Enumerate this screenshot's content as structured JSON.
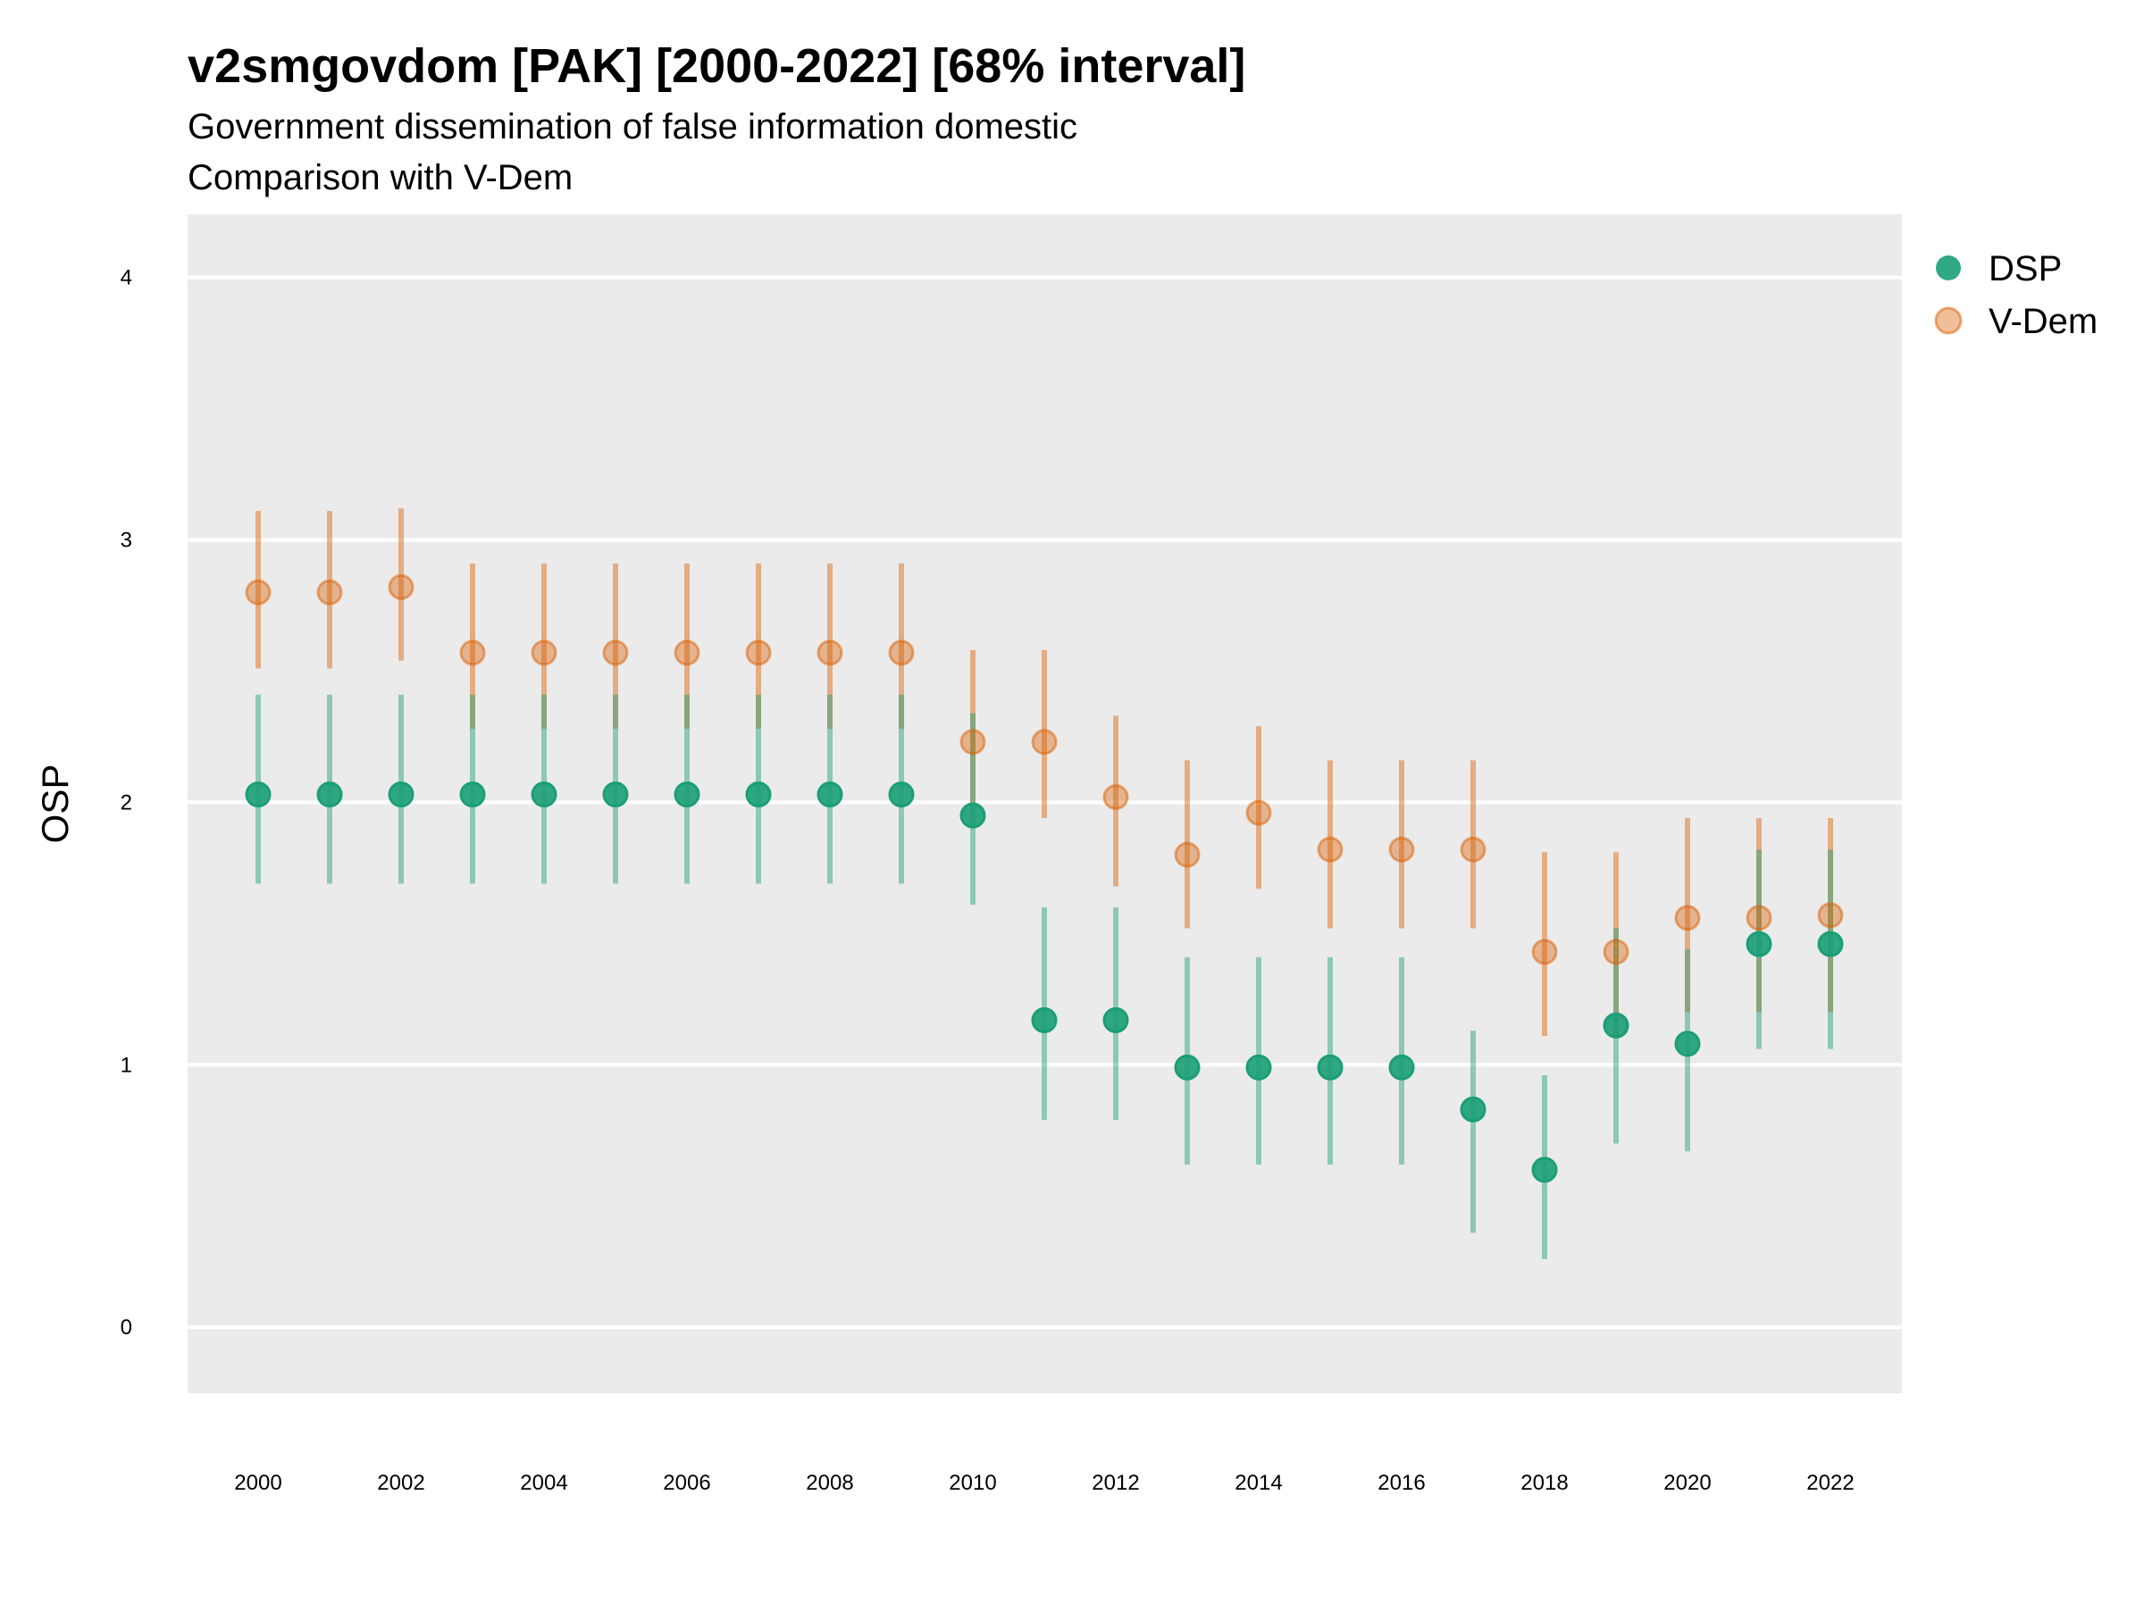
{
  "chart_data": {
    "type": "scatter",
    "title": "v2smgovdom [PAK] [2000-2022] [68% interval]",
    "subtitle_lines": [
      "Government dissemination of false information domestic",
      "Comparison with V-Dem"
    ],
    "xlabel": "",
    "ylabel": "OSP",
    "ylim": [
      -0.25,
      4.25
    ],
    "yticks": [
      0,
      1,
      2,
      3,
      4
    ],
    "xticks": [
      2000,
      2002,
      2004,
      2006,
      2008,
      2010,
      2012,
      2014,
      2016,
      2018,
      2020,
      2022
    ],
    "grid": true,
    "legend_position": "right",
    "x": [
      2000,
      2001,
      2002,
      2003,
      2004,
      2005,
      2006,
      2007,
      2008,
      2009,
      2010,
      2011,
      2012,
      2013,
      2014,
      2015,
      2016,
      2017,
      2018,
      2019,
      2020,
      2021,
      2022
    ],
    "series": [
      {
        "name": "DSP",
        "color": "#1b9e77",
        "values": [
          2.03,
          2.03,
          2.03,
          2.03,
          2.03,
          2.03,
          2.03,
          2.03,
          2.03,
          2.03,
          1.95,
          1.17,
          1.17,
          0.99,
          0.99,
          0.99,
          0.99,
          0.83,
          0.6,
          1.15,
          1.08,
          1.46,
          1.46
        ],
        "lower": [
          1.69,
          1.69,
          1.69,
          1.69,
          1.69,
          1.69,
          1.69,
          1.69,
          1.69,
          1.69,
          1.61,
          0.79,
          0.79,
          0.62,
          0.62,
          0.62,
          0.62,
          0.36,
          0.26,
          0.7,
          0.67,
          1.06,
          1.06
        ],
        "upper": [
          2.41,
          2.41,
          2.41,
          2.41,
          2.41,
          2.41,
          2.41,
          2.41,
          2.41,
          2.41,
          2.34,
          1.6,
          1.6,
          1.41,
          1.41,
          1.41,
          1.41,
          1.13,
          0.96,
          1.52,
          1.44,
          1.82,
          1.82
        ]
      },
      {
        "name": "V-Dem",
        "color": "#d95f02",
        "values": [
          2.8,
          2.8,
          2.82,
          2.57,
          2.57,
          2.57,
          2.57,
          2.57,
          2.57,
          2.57,
          2.23,
          2.23,
          2.02,
          1.8,
          1.96,
          1.82,
          1.82,
          1.82,
          1.43,
          1.43,
          1.56,
          1.56,
          1.57
        ],
        "lower": [
          2.51,
          2.51,
          2.54,
          2.28,
          2.28,
          2.28,
          2.28,
          2.28,
          2.28,
          2.28,
          1.94,
          1.94,
          1.68,
          1.52,
          1.67,
          1.52,
          1.52,
          1.52,
          1.11,
          1.11,
          1.2,
          1.2,
          1.2
        ],
        "upper": [
          3.11,
          3.11,
          3.12,
          2.91,
          2.91,
          2.91,
          2.91,
          2.91,
          2.91,
          2.91,
          2.58,
          2.58,
          2.33,
          2.16,
          2.29,
          2.16,
          2.16,
          2.16,
          1.81,
          1.81,
          1.94,
          1.94,
          1.94
        ]
      }
    ]
  }
}
